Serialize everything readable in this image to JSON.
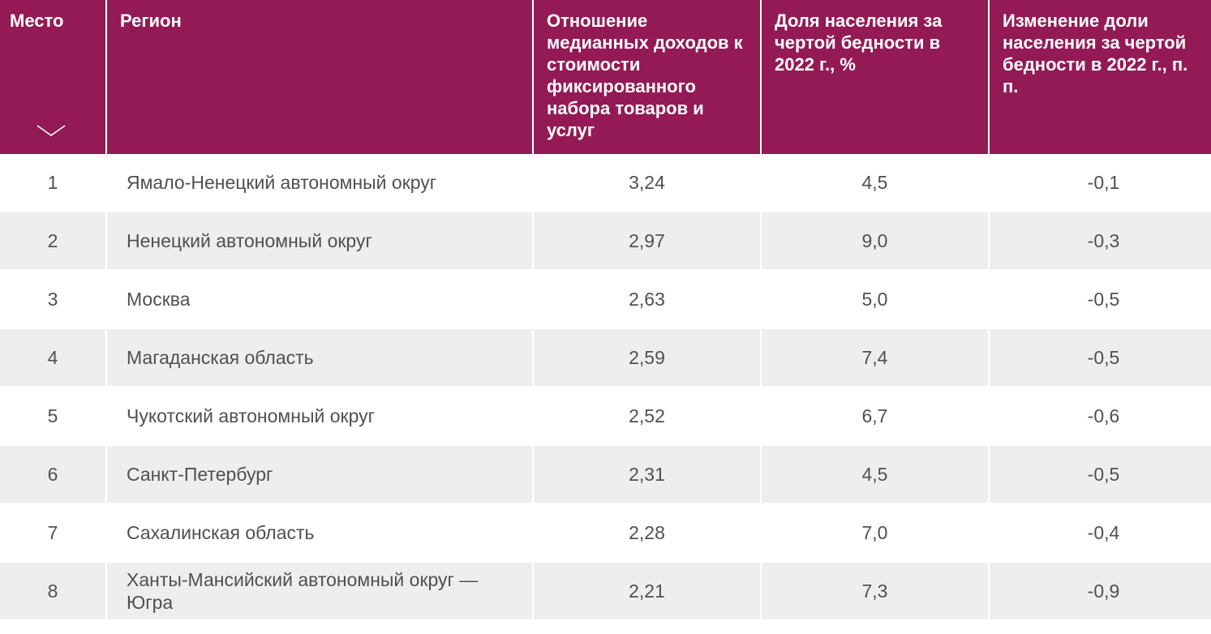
{
  "colors": {
    "header_bg": "#931a54",
    "header_text": "#ffffff",
    "row_alt_bg": "#eeeeee",
    "cell_text": "#505050"
  },
  "table": {
    "headers": [
      "Место",
      "Регион",
      "Отношение медианных доходов к стоимости фиксированного набора товаров и услуг",
      "Доля населения за чертой бедности в 2022 г., %",
      "Изменение доли населения за чертой бедности в 2022 г., п. п."
    ],
    "sort_icon": "chevron-down-icon",
    "rows": [
      [
        "1",
        "Ямало-Ненецкий автономный округ",
        "3,24",
        "4,5",
        "-0,1"
      ],
      [
        "2",
        "Ненецкий автономный округ",
        "2,97",
        "9,0",
        "-0,3"
      ],
      [
        "3",
        "Москва",
        "2,63",
        "5,0",
        "-0,5"
      ],
      [
        "4",
        "Магаданская область",
        "2,59",
        "7,4",
        "-0,5"
      ],
      [
        "5",
        "Чукотский автономный округ",
        "2,52",
        "6,7",
        "-0,6"
      ],
      [
        "6",
        "Санкт-Петербург",
        "2,31",
        "4,5",
        "-0,5"
      ],
      [
        "7",
        "Сахалинская область",
        "2,28",
        "7,0",
        "-0,4"
      ],
      [
        "8",
        "Ханты-Мансийский автономный округ — Югра",
        "2,21",
        "7,3",
        "-0,9"
      ]
    ]
  }
}
